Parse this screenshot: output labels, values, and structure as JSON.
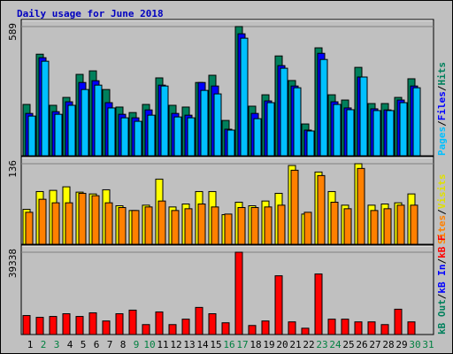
{
  "chart_data": [
    {
      "type": "bar",
      "title": "Daily usage for June 2018",
      "legend_separator": "/",
      "ylim": [
        0,
        589
      ],
      "yticks": [
        589
      ],
      "grid": true,
      "series": [
        {
          "name": "Hits",
          "color": "#00805c",
          "values": [
            234,
            463,
            230,
            266,
            371,
            387,
            302,
            222,
            197,
            234,
            355,
            230,
            222,
            334,
            367,
            161,
            589,
            226,
            278,
            455,
            343,
            145,
            492,
            278,
            254,
            403,
            238,
            238,
            266,
            351,
            null
          ]
        },
        {
          "name": "Files",
          "color": "#0000ff",
          "values": [
            193,
            447,
            201,
            246,
            334,
            342,
            242,
            189,
            173,
            209,
            322,
            193,
            185,
            334,
            318,
            121,
            556,
            193,
            250,
            411,
            318,
            117,
            467,
            246,
            218,
            359,
            214,
            209,
            254,
            318,
            null
          ]
        },
        {
          "name": "Pages",
          "color": "#00c0ff",
          "values": [
            181,
            431,
            189,
            230,
            302,
            322,
            218,
            173,
            157,
            185,
            318,
            177,
            173,
            298,
            282,
            117,
            536,
            169,
            242,
            399,
            310,
            113,
            439,
            234,
            210,
            359,
            206,
            206,
            242,
            310,
            null
          ]
        }
      ]
    },
    {
      "type": "bar",
      "legend_separator": "/",
      "ylim": [
        0,
        136
      ],
      "yticks": [
        136
      ],
      "grid": true,
      "series": [
        {
          "name": "Visits",
          "color": "#ffff00",
          "values": [
            59,
            89,
            91,
            97,
            88,
            85,
            92,
            65,
            57,
            66,
            110,
            63,
            68,
            89,
            89,
            50,
            71,
            65,
            73,
            86,
            133,
            51,
            122,
            89,
            66,
            136,
            66,
            68,
            70,
            85,
            null
          ]
        },
        {
          "name": "Sites",
          "color": "#ff8000",
          "values": [
            54,
            76,
            70,
            70,
            86,
            82,
            70,
            62,
            57,
            63,
            73,
            57,
            60,
            68,
            63,
            51,
            62,
            62,
            63,
            66,
            125,
            54,
            116,
            71,
            60,
            128,
            57,
            60,
            66,
            66,
            null
          ]
        }
      ]
    },
    {
      "type": "bar",
      "legend_separator": "/",
      "ylim": [
        0,
        39338
      ],
      "yticks": [
        39338
      ],
      "grid": true,
      "categories": [
        "1",
        "2",
        "3",
        "4",
        "5",
        "6",
        "7",
        "8",
        "9",
        "10",
        "11",
        "12",
        "13",
        "14",
        "15",
        "16",
        "17",
        "18",
        "19",
        "20",
        "21",
        "22",
        "23",
        "24",
        "25",
        "26",
        "27",
        "28",
        "29",
        "30",
        "31"
      ],
      "category_colors": [
        "#000000",
        "#008040",
        "#008040",
        "#000000",
        "#000000",
        "#000000",
        "#000000",
        "#000000",
        "#008040",
        "#008040",
        "#000000",
        "#000000",
        "#000000",
        "#000000",
        "#000000",
        "#008040",
        "#008040",
        "#000000",
        "#000000",
        "#000000",
        "#000000",
        "#000000",
        "#008040",
        "#008040",
        "#000000",
        "#000000",
        "#000000",
        "#000000",
        "#000000",
        "#008040",
        "#008040"
      ],
      "series": [
        {
          "name": "kB F",
          "color": "#ff0000",
          "values": [
            9075,
            8210,
            8640,
            9940,
            8640,
            10370,
            6480,
            9940,
            11660,
            4750,
            10800,
            4750,
            7340,
            12960,
            9940,
            5620,
            39338,
            4320,
            6480,
            28080,
            6050,
            3020,
            28940,
            7340,
            7340,
            6050,
            6050,
            4750,
            12100,
            6050,
            null
          ]
        },
        {
          "name": "kB In",
          "color": "#0000ff",
          "values": [
            null,
            null,
            null,
            null,
            null,
            null,
            null,
            null,
            null,
            null,
            null,
            null,
            null,
            null,
            null,
            null,
            null,
            null,
            null,
            null,
            null,
            null,
            null,
            null,
            null,
            null,
            null,
            null,
            null,
            null,
            null
          ]
        },
        {
          "name": "kB Out",
          "color": "#00805c",
          "values": [
            null,
            null,
            null,
            null,
            null,
            null,
            null,
            null,
            null,
            null,
            null,
            null,
            null,
            null,
            null,
            null,
            null,
            null,
            null,
            null,
            null,
            null,
            null,
            null,
            null,
            null,
            null,
            null,
            null,
            null,
            null
          ]
        }
      ]
    }
  ]
}
